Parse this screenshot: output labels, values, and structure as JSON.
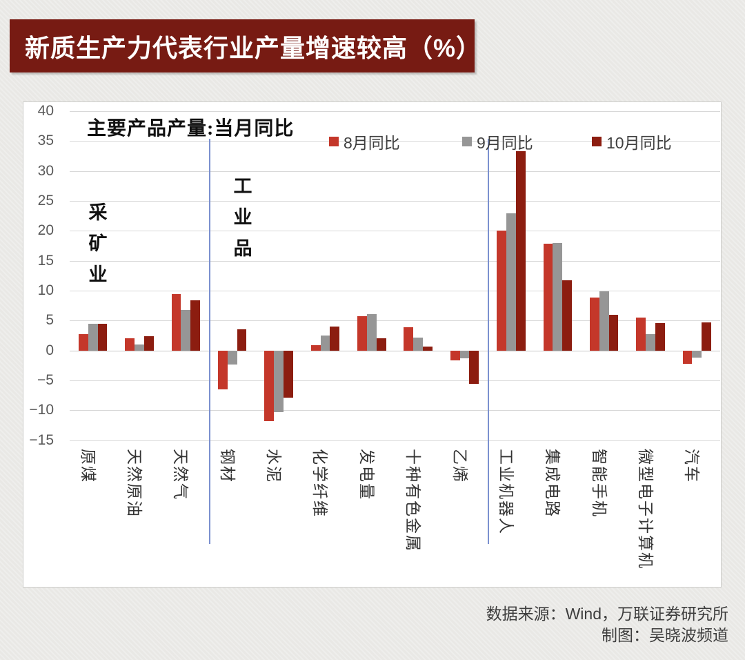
{
  "banner": {
    "title": "新质生产力代表行业产量增速较高（%）",
    "bg_color": "#771b13"
  },
  "chart_data": {
    "type": "bar",
    "title": "主要产品产量:当月同比",
    "categories": [
      "原煤",
      "天然原油",
      "天然气",
      "钢材",
      "水泥",
      "化学纤维",
      "发电量",
      "十种有色金属",
      "乙烯",
      "工业机器人",
      "集成电路",
      "智能手机",
      "微型电子计算机",
      "汽车"
    ],
    "series": [
      {
        "name": "8月同比",
        "color": "#c4372a",
        "values": [
          2.7,
          2.0,
          9.4,
          -6.5,
          -11.8,
          0.9,
          5.7,
          3.9,
          -1.6,
          20.0,
          17.8,
          8.8,
          5.5,
          -2.2
        ]
      },
      {
        "name": "9月同比",
        "color": "#969696",
        "values": [
          4.5,
          1.0,
          6.8,
          -2.4,
          -10.3,
          2.5,
          6.1,
          2.1,
          -1.3,
          22.9,
          18.0,
          9.9,
          2.7,
          -1.2
        ]
      },
      {
        "name": "10月同比",
        "color": "#8c1d10",
        "values": [
          4.5,
          2.4,
          8.4,
          3.5,
          -7.9,
          4.0,
          2.0,
          0.6,
          -5.6,
          33.3,
          11.7,
          6.0,
          4.6,
          4.7
        ]
      }
    ],
    "ylabel": "",
    "xlabel": "",
    "ylim": [
      -15,
      40
    ],
    "ytick_step": 5,
    "grid": true,
    "legend_position": "top",
    "group_labels": [
      "采矿业",
      "工业品"
    ],
    "separators_after_category_index": [
      2,
      8
    ]
  },
  "source": {
    "line1": "数据来源：Wind，万联证券研究所",
    "line2": "制图：吴晓波频道"
  }
}
